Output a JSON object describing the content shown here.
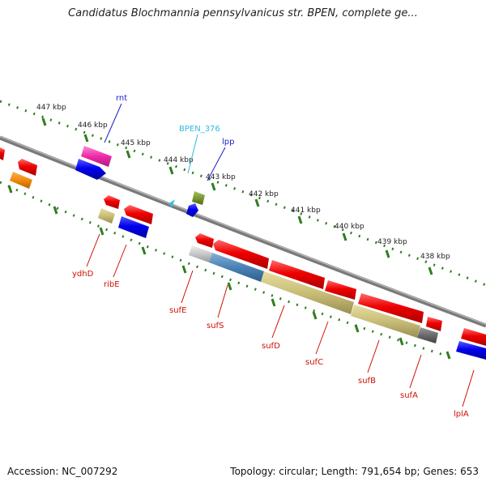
{
  "title": "Candidatus Blochmannia pennsylvanicus str. BPEN, complete ge...",
  "footer": {
    "accession": "Accession: NC_007292",
    "summary": "Topology: circular; Length: 791,654 bp; Genes: 653"
  },
  "colors": {
    "backbone": "#8c8c8c",
    "tick": "#2e7d1f",
    "red_label": "#cc1100",
    "blue_label": "#1a1acc",
    "cyan_label": "#33bbdd"
  },
  "scale_labels": [
    "447 kbp",
    "446 kbp",
    "445 kbp",
    "444 kbp",
    "443 kbp",
    "442 kbp",
    "441 kbp",
    "440 kbp",
    "439 kbp",
    "438 kbp"
  ],
  "gene_labels": {
    "rnt": "rnt",
    "bpen376": "BPEN_376",
    "lpp": "lpp",
    "ydhD": "ydhD",
    "ribE": "ribE",
    "sufE": "sufE",
    "sufS": "sufS",
    "sufD": "sufD",
    "sufC": "sufC",
    "sufB": "sufB",
    "sufA": "sufA",
    "lplA": "lplA"
  }
}
